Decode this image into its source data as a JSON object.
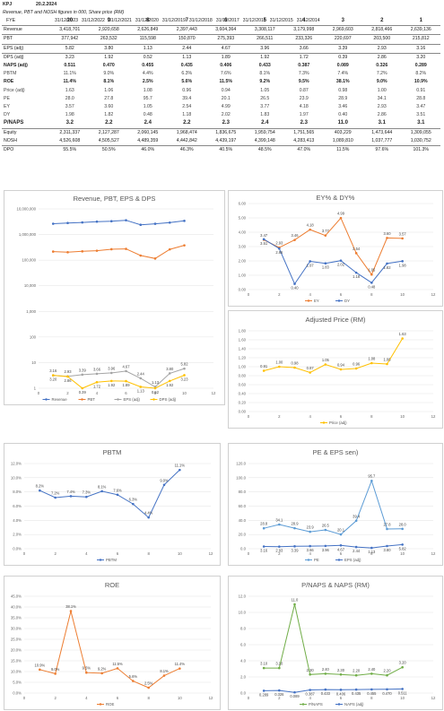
{
  "header": {
    "ticker": "KPJ",
    "date": "20.2.2024",
    "note": "Revenue, PBT and NOSH figures in 000, Share price (RM)"
  },
  "table": {
    "columns": [
      "31/12/2023",
      "31/12/2022",
      "31/12/2021",
      "31/12/2020",
      "31/12/2019",
      "31/12/2018",
      "31/12/2017",
      "31/12/2016",
      "31/12/2015",
      "31/12/2014"
    ],
    "rows": [
      {
        "label": "FYE",
        "values": [
          "31/12/2023",
          "31/12/2022",
          "31/12/2021",
          "31/12/2020",
          "31/12/2019",
          "31/12/2018",
          "31/12/2017",
          "31/12/2016",
          "31/12/2015",
          "31/12/2014"
        ],
        "style": "hdr"
      },
      {
        "label": "",
        "values": [
          "10",
          "9",
          "8",
          "7",
          "6",
          "5",
          "4",
          "3",
          "2",
          "1"
        ],
        "style": "big"
      },
      {
        "label": "Revenue",
        "values": [
          "3,418,701",
          "2,920,658",
          "2,626,849",
          "2,397,443",
          "3,604,364",
          "3,308,117",
          "3,179,998",
          "2,969,603",
          "2,818,466",
          "2,639,136"
        ],
        "style": "top"
      },
      {
        "label": "PBT",
        "values": [
          "377,942",
          "263,532",
          "115,598",
          "150,870",
          "275,393",
          "266,511",
          "233,326",
          "220,697",
          "203,500",
          "215,812"
        ],
        "style": "top"
      },
      {
        "label": "EPS (adj)",
        "values": [
          "5.82",
          "3.80",
          "1.13",
          "2.44",
          "4.67",
          "3.96",
          "3.66",
          "3.39",
          "2.93",
          "3.16"
        ],
        "style": "top"
      },
      {
        "label": "DPS (adj)",
        "values": [
          "3.23",
          "1.92",
          "0.52",
          "1.13",
          "1.89",
          "1.92",
          "1.72",
          "0.39",
          "2.86",
          "3.20"
        ],
        "style": "top"
      },
      {
        "label": "NAPS (adj)",
        "values": [
          "0.511",
          "0.470",
          "0.455",
          "0.435",
          "0.406",
          "0.433",
          "0.387",
          "0.089",
          "0.326",
          "0.289"
        ],
        "style": "bold"
      },
      {
        "label": "PBTM",
        "values": [
          "11.1%",
          "9.0%",
          "4.4%",
          "6.3%",
          "7.6%",
          "8.1%",
          "7.3%",
          "7.4%",
          "7.2%",
          "8.2%"
        ],
        "style": "grey"
      },
      {
        "label": "ROE",
        "values": [
          "11.4%",
          "8.1%",
          "2.5%",
          "5.6%",
          "11.5%",
          "9.2%",
          "9.5%",
          "38.1%",
          "9.0%",
          "10.9%"
        ],
        "style": "bold"
      },
      {
        "label": "Price (adj)",
        "values": [
          "1.63",
          "1.06",
          "1.08",
          "0.96",
          "0.94",
          "1.05",
          "0.87",
          "0.98",
          "1.00",
          "0.91"
        ],
        "style": "grey"
      },
      {
        "label": "PE",
        "values": [
          "28.0",
          "27.8",
          "95.7",
          "39.4",
          "20.1",
          "26.5",
          "23.9",
          "28.9",
          "34.1",
          "28.8"
        ],
        "style": "grey"
      },
      {
        "label": "EY",
        "values": [
          "3.57",
          "3.60",
          "1.05",
          "2.54",
          "4.99",
          "3.77",
          "4.18",
          "3.46",
          "2.93",
          "3.47"
        ],
        "style": "grey"
      },
      {
        "label": "DY",
        "values": [
          "1.98",
          "1.82",
          "0.48",
          "1.18",
          "2.02",
          "1.83",
          "1.97",
          "0.40",
          "2.86",
          "3.51"
        ],
        "style": "grey"
      },
      {
        "label": "P/NAPS",
        "values": [
          "3.2",
          "2.2",
          "2.4",
          "2.2",
          "2.3",
          "2.4",
          "2.3",
          "11.0",
          "3.1",
          "3.1"
        ],
        "style": "big"
      },
      {
        "label": "Equity",
        "values": [
          "2,311,337",
          "2,127,287",
          "2,060,145",
          "1,968,474",
          "1,836,675",
          "1,959,754",
          "1,751,565",
          "403,229",
          "1,473,644",
          "1,309,055"
        ],
        "style": "top"
      },
      {
        "label": "NOSH",
        "values": [
          "4,526,608",
          "4,505,527",
          "4,489,359",
          "4,442,842",
          "4,439,197",
          "4,399,148",
          "4,283,413",
          "1,089,810",
          "1,037,777",
          "1,030,752"
        ],
        "style": ""
      },
      {
        "label": "DPO",
        "values": [
          "55.5%",
          "50.5%",
          "46.0%",
          "46.3%",
          "40.5%",
          "48.5%",
          "47.0%",
          "11.5%",
          "97.6%",
          "101.3%"
        ],
        "style": "top"
      }
    ]
  },
  "chart_data": [
    {
      "type": "line",
      "title": "Revenue, PBT, EPS & DPS",
      "yscale": "log",
      "ylim": [
        1,
        10000000
      ],
      "xlim": [
        0,
        12
      ],
      "yticks": [
        "10,000,000",
        "1,000,000",
        "100,000",
        "10,000",
        "1,000",
        "100",
        "10",
        "1"
      ],
      "xticks": [
        "0",
        "2",
        "4",
        "6",
        "8",
        "10",
        "12"
      ],
      "x": [
        1,
        2,
        3,
        4,
        5,
        6,
        7,
        8,
        9,
        10
      ],
      "series": [
        {
          "name": "Revenue",
          "color": "#4472C4",
          "values": [
            2639136,
            2818466,
            2969603,
            3179998,
            3308117,
            3604364,
            2397443,
            2626849,
            2920658,
            3418701
          ],
          "labels": false
        },
        {
          "name": "PBT",
          "color": "#ED7D31",
          "values": [
            215812,
            203500,
            220697,
            233326,
            266511,
            275393,
            150870,
            115598,
            263532,
            377942
          ],
          "labels": false
        },
        {
          "name": "EPS (adj)",
          "color": "#A5A5A5",
          "values": [
            3.16,
            2.93,
            3.39,
            3.66,
            3.96,
            4.67,
            2.44,
            1.13,
            3.8,
            5.82
          ],
          "labels": true
        },
        {
          "name": "DPS (adj)",
          "color": "#FFC000",
          "values": [
            3.2,
            2.86,
            0.39,
            1.72,
            1.92,
            1.89,
            1.13,
            0.52,
            1.92,
            3.23
          ],
          "labels": true
        }
      ]
    },
    {
      "type": "line",
      "title": "EY% & DY%",
      "ylim": [
        0,
        6
      ],
      "xlim": [
        0,
        12
      ],
      "yticks": [
        "6.00",
        "5.00",
        "4.00",
        "3.00",
        "2.00",
        "1.00",
        "0.00"
      ],
      "xticks": [
        "0",
        "2",
        "4",
        "6",
        "8",
        "10",
        "12"
      ],
      "x": [
        1,
        2,
        3,
        4,
        5,
        6,
        7,
        8,
        9,
        10
      ],
      "series": [
        {
          "name": "EY",
          "color": "#ED7D31",
          "values": [
            3.47,
            2.93,
            3.46,
            4.18,
            3.77,
            4.99,
            2.54,
            1.05,
            3.6,
            3.57
          ],
          "labels": true
        },
        {
          "name": "DY",
          "color": "#4472C4",
          "values": [
            3.51,
            2.86,
            0.4,
            1.97,
            1.83,
            2.02,
            1.18,
            0.48,
            1.82,
            1.98
          ],
          "labels": true
        }
      ]
    },
    {
      "type": "line",
      "title": "Adjusted Price (RM)",
      "ylim": [
        0,
        1.8
      ],
      "xlim": [
        0,
        12
      ],
      "yticks": [
        "1.80",
        "1.60",
        "1.40",
        "1.20",
        "1.00",
        "0.80",
        "0.60",
        "0.40",
        "0.20",
        "0.00"
      ],
      "xticks": [
        "0",
        "2",
        "4",
        "6",
        "8",
        "10",
        "12"
      ],
      "x": [
        1,
        2,
        3,
        4,
        5,
        6,
        7,
        8,
        9,
        10
      ],
      "series": [
        {
          "name": "Price (adj)",
          "color": "#FFC000",
          "values": [
            0.91,
            1.0,
            0.98,
            0.87,
            1.05,
            0.94,
            0.96,
            1.08,
            1.06,
            1.63
          ],
          "labels": true
        }
      ]
    },
    {
      "type": "line",
      "title": "PBTM",
      "ylim": [
        0,
        12
      ],
      "xlim": [
        0,
        12
      ],
      "yticks": [
        "12.0%",
        "10.0%",
        "8.0%",
        "6.0%",
        "4.0%",
        "2.0%",
        "0.0%"
      ],
      "xticks": [
        "0",
        "2",
        "4",
        "6",
        "8",
        "10",
        "12"
      ],
      "x": [
        1,
        2,
        3,
        4,
        5,
        6,
        7,
        8,
        9,
        10
      ],
      "series": [
        {
          "name": "PBTM",
          "color": "#4472C4",
          "values": [
            8.2,
            7.2,
            7.4,
            7.3,
            8.1,
            7.6,
            6.3,
            4.4,
            9.0,
            11.1
          ],
          "labels": true,
          "fmt": "pct"
        }
      ]
    },
    {
      "type": "line",
      "title": "PE & EPS sen)",
      "ylim": [
        0,
        120
      ],
      "xlim": [
        0,
        12
      ],
      "yticks": [
        "120.0",
        "100.0",
        "80.0",
        "60.0",
        "40.0",
        "20.0",
        "0.0"
      ],
      "xticks": [
        "0",
        "2",
        "4",
        "6",
        "8",
        "10",
        "12"
      ],
      "x": [
        1,
        2,
        3,
        4,
        5,
        6,
        7,
        8,
        9,
        10
      ],
      "series": [
        {
          "name": "PE",
          "color": "#5B9BD5",
          "values": [
            28.8,
            34.1,
            28.9,
            23.9,
            26.5,
            20.1,
            39.4,
            95.7,
            27.8,
            28.0
          ],
          "labels": true
        },
        {
          "name": "EPS (adj)",
          "color": "#4472C4",
          "values": [
            3.16,
            2.93,
            3.39,
            3.66,
            3.96,
            4.67,
            2.44,
            1.13,
            3.8,
            5.82
          ],
          "labels": true
        }
      ]
    },
    {
      "type": "line",
      "title": "ROE",
      "ylim": [
        0,
        45
      ],
      "xlim": [
        0,
        12
      ],
      "yticks": [
        "45.0%",
        "40.0%",
        "35.0%",
        "30.0%",
        "25.0%",
        "20.0%",
        "15.0%",
        "10.0%",
        "5.0%",
        "0.0%"
      ],
      "xticks": [
        "0",
        "2",
        "4",
        "6",
        "8",
        "10",
        "12"
      ],
      "x": [
        1,
        2,
        3,
        4,
        5,
        6,
        7,
        8,
        9,
        10
      ],
      "series": [
        {
          "name": "ROE",
          "color": "#ED7D31",
          "values": [
            10.9,
            9.0,
            38.1,
            9.5,
            9.2,
            11.5,
            5.6,
            2.5,
            8.1,
            11.4
          ],
          "labels": true,
          "fmt": "pct"
        }
      ]
    },
    {
      "type": "line",
      "title": "P/NAPS & NAPS (RM)",
      "ylim": [
        0,
        12
      ],
      "xlim": [
        0,
        12
      ],
      "yticks": [
        "12.0",
        "10.0",
        "8.0",
        "6.0",
        "4.0",
        "2.0",
        "0.0"
      ],
      "xticks": [
        "0",
        "2",
        "4",
        "6",
        "8",
        "10",
        "12"
      ],
      "x": [
        1,
        2,
        3,
        4,
        5,
        6,
        7,
        8,
        9,
        10
      ],
      "series": [
        {
          "name": "P/NAPS",
          "color": "#70AD47",
          "values": [
            3.1,
            3.1,
            11.0,
            2.3,
            2.4,
            2.3,
            2.2,
            2.4,
            2.2,
            3.2
          ],
          "labels": true
        },
        {
          "name": "NAPS (adj)",
          "color": "#4472C4",
          "values": [
            0.289,
            0.326,
            0.089,
            0.387,
            0.433,
            0.406,
            0.435,
            0.455,
            0.47,
            0.511
          ],
          "labels": true,
          "fmt": "3dp"
        }
      ]
    }
  ]
}
